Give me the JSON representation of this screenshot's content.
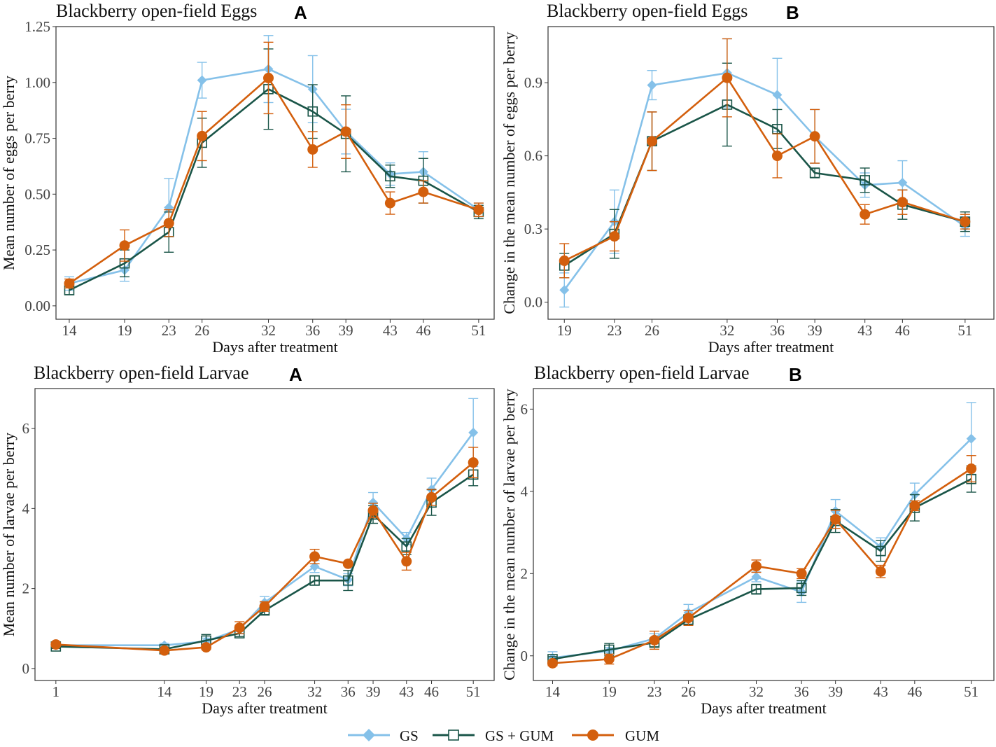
{
  "legend": [
    {
      "name": "GS",
      "color": "#85c1e9",
      "marker": "diamond"
    },
    {
      "name": "GS + GUM",
      "color": "#1a5548",
      "marker": "open-square"
    },
    {
      "name": "GUM",
      "color": "#d35f0d",
      "marker": "filled-circle"
    }
  ],
  "chart_data": [
    {
      "type": "line",
      "title": "Blackberry open-field Eggs",
      "panel_label": "A",
      "xlabel": "Days after treatment",
      "ylabel": "Mean number of eggs per berry",
      "x": [
        14,
        19,
        23,
        26,
        32,
        36,
        39,
        43,
        46,
        51
      ],
      "xlim": [
        12.8,
        52.4
      ],
      "ylim": [
        -0.06,
        1.25
      ],
      "yticks": [
        0,
        0.25,
        0.5,
        0.75,
        1.0,
        1.25
      ],
      "ytick_labels": [
        "0.00",
        "0.25",
        "0.50",
        "0.75",
        "1.00",
        "1.25"
      ],
      "series": [
        {
          "name": "GS",
          "values": [
            0.1,
            0.16,
            0.44,
            1.01,
            1.06,
            0.97,
            0.78,
            0.59,
            0.6,
            0.43
          ],
          "err": [
            0.03,
            0.05,
            0.13,
            0.08,
            0.15,
            0.15,
            0.1,
            0.05,
            0.09,
            0.03
          ]
        },
        {
          "name": "GS + GUM",
          "values": [
            0.07,
            0.19,
            0.33,
            0.73,
            0.97,
            0.87,
            0.77,
            0.58,
            0.56,
            0.42
          ],
          "err": [
            0.02,
            0.06,
            0.09,
            0.11,
            0.18,
            0.12,
            0.17,
            0.05,
            0.1,
            0.03
          ]
        },
        {
          "name": "GUM",
          "values": [
            0.1,
            0.27,
            0.37,
            0.76,
            1.02,
            0.7,
            0.78,
            0.46,
            0.51,
            0.43
          ],
          "err": [
            0.02,
            0.07,
            0.06,
            0.11,
            0.16,
            0.08,
            0.12,
            0.05,
            0.05,
            0.03
          ]
        }
      ]
    },
    {
      "type": "line",
      "title": "Blackberry open-field Eggs",
      "panel_label": "B",
      "xlabel": "Days after treatment",
      "ylabel": "Change in the mean number of eggs per berry",
      "x": [
        19,
        23,
        26,
        32,
        36,
        39,
        43,
        46,
        51
      ],
      "xlim": [
        17.7,
        53.3
      ],
      "ylim": [
        -0.07,
        1.13
      ],
      "yticks": [
        0,
        0.3,
        0.6,
        0.9
      ],
      "ytick_labels": [
        "0.0",
        "0.3",
        "0.6",
        "0.9"
      ],
      "series": [
        {
          "name": "GS",
          "values": [
            0.05,
            0.33,
            0.89,
            0.94,
            0.85,
            0.68,
            0.48,
            0.49,
            0.31
          ],
          "err": [
            0.07,
            0.13,
            0.06,
            0.14,
            0.15,
            0.11,
            0.05,
            0.09,
            0.04
          ]
        },
        {
          "name": "GS + GUM",
          "values": [
            0.15,
            0.28,
            0.66,
            0.81,
            0.71,
            0.53,
            0.5,
            0.4,
            0.33
          ],
          "err": [
            0.05,
            0.1,
            0.12,
            0.17,
            0.08,
            0.02,
            0.05,
            0.06,
            0.04
          ]
        },
        {
          "name": "GUM",
          "values": [
            0.17,
            0.27,
            0.66,
            0.92,
            0.6,
            0.68,
            0.36,
            0.41,
            0.33
          ],
          "err": [
            0.07,
            0.06,
            0.12,
            0.16,
            0.09,
            0.11,
            0.04,
            0.05,
            0.03
          ]
        }
      ]
    },
    {
      "type": "line",
      "title": "Blackberry open-field Larvae",
      "panel_label": "A",
      "xlabel": "Days after treatment",
      "ylabel": "Mean number of larvae per berry",
      "x": [
        1,
        14,
        19,
        23,
        26,
        32,
        36,
        39,
        43,
        46,
        51
      ],
      "xlim": [
        -1.5,
        53.5
      ],
      "ylim": [
        -0.3,
        7.0
      ],
      "yticks": [
        0,
        2,
        4,
        6
      ],
      "ytick_labels": [
        "0",
        "2",
        "4",
        "6"
      ],
      "series": [
        {
          "name": "GS",
          "values": [
            0.58,
            0.58,
            0.68,
            0.98,
            1.65,
            2.55,
            2.22,
            4.15,
            3.25,
            4.48,
            5.9
          ],
          "err": [
            0.05,
            0.05,
            0.08,
            0.1,
            0.15,
            0.15,
            0.15,
            0.25,
            0.15,
            0.28,
            0.85
          ]
        },
        {
          "name": "GS + GUM",
          "values": [
            0.55,
            0.48,
            0.7,
            0.88,
            1.45,
            2.2,
            2.2,
            3.85,
            3.05,
            4.15,
            4.85
          ],
          "err": [
            0.05,
            0.05,
            0.15,
            0.08,
            0.1,
            0.12,
            0.25,
            0.22,
            0.2,
            0.32,
            0.28
          ]
        },
        {
          "name": "GUM",
          "values": [
            0.6,
            0.45,
            0.53,
            1.02,
            1.55,
            2.8,
            2.62,
            3.95,
            2.68,
            4.28,
            5.15
          ],
          "err": [
            0.04,
            0.04,
            0.05,
            0.15,
            0.12,
            0.18,
            0.05,
            0.18,
            0.22,
            0.2,
            0.38
          ]
        }
      ]
    },
    {
      "type": "line",
      "title": "Blackberry open-field Larvae",
      "panel_label": "B",
      "xlabel": "Days after treatment",
      "ylabel": "Change in the mean number of larvae per berry",
      "x": [
        14,
        19,
        23,
        26,
        32,
        36,
        39,
        43,
        46,
        51
      ],
      "xlim": [
        12.3,
        53.0
      ],
      "ylim": [
        -0.6,
        6.5
      ],
      "yticks": [
        0,
        2,
        4,
        6
      ],
      "ytick_labels": [
        "0",
        "2",
        "4",
        "6"
      ],
      "series": [
        {
          "name": "GS",
          "values": [
            -0.05,
            0.12,
            0.42,
            1.05,
            1.92,
            1.55,
            3.52,
            2.65,
            3.92,
            5.28
          ],
          "err": [
            0.15,
            0.08,
            0.12,
            0.2,
            0.12,
            0.25,
            0.28,
            0.22,
            0.28,
            0.88
          ]
        },
        {
          "name": "GS + GUM",
          "values": [
            -0.08,
            0.15,
            0.32,
            0.88,
            1.62,
            1.65,
            3.28,
            2.55,
            3.6,
            4.3
          ],
          "err": [
            0.06,
            0.15,
            0.1,
            0.12,
            0.12,
            0.18,
            0.28,
            0.25,
            0.32,
            0.32
          ]
        },
        {
          "name": "GUM",
          "values": [
            -0.18,
            -0.08,
            0.38,
            0.92,
            2.18,
            2.0,
            3.32,
            2.05,
            3.65,
            4.55
          ],
          "err": [
            0.06,
            0.12,
            0.22,
            0.18,
            0.15,
            0.12,
            0.22,
            0.15,
            0.12,
            0.32
          ]
        }
      ]
    }
  ]
}
